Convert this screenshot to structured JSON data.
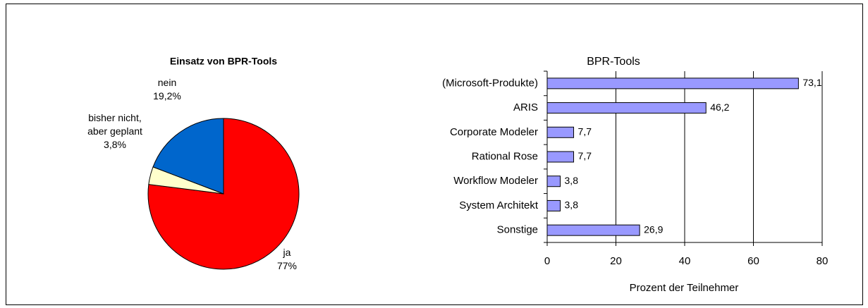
{
  "chart_data": [
    {
      "type": "pie",
      "title": "Einsatz von BPR-Tools",
      "categories": [
        "ja",
        "bisher nicht, aber geplant",
        "nein"
      ],
      "values": [
        77,
        3.8,
        19.2
      ],
      "value_labels": [
        "77%",
        "3,8%",
        "19,2%"
      ],
      "colors": [
        "#ff0000",
        "#ffffcc",
        "#0066cc"
      ]
    },
    {
      "type": "hbar",
      "title": "BPR-Tools",
      "categories": [
        "(Microsoft-Produkte)",
        "ARIS",
        "Corporate Modeler",
        "Rational Rose",
        "Workflow Modeler",
        "System Architekt",
        "Sonstige"
      ],
      "values": [
        73.1,
        46.2,
        7.7,
        7.7,
        3.8,
        3.8,
        26.9
      ],
      "value_labels": [
        "73,1",
        "46,2",
        "7,7",
        "7,7",
        "3,8",
        "3,8",
        "26,9"
      ],
      "color": "#9999ff",
      "xlabel": "Prozent der Teilnehmer",
      "xlim": [
        0,
        80
      ],
      "xticks": [
        0,
        20,
        40,
        60,
        80
      ],
      "grid": true
    }
  ]
}
